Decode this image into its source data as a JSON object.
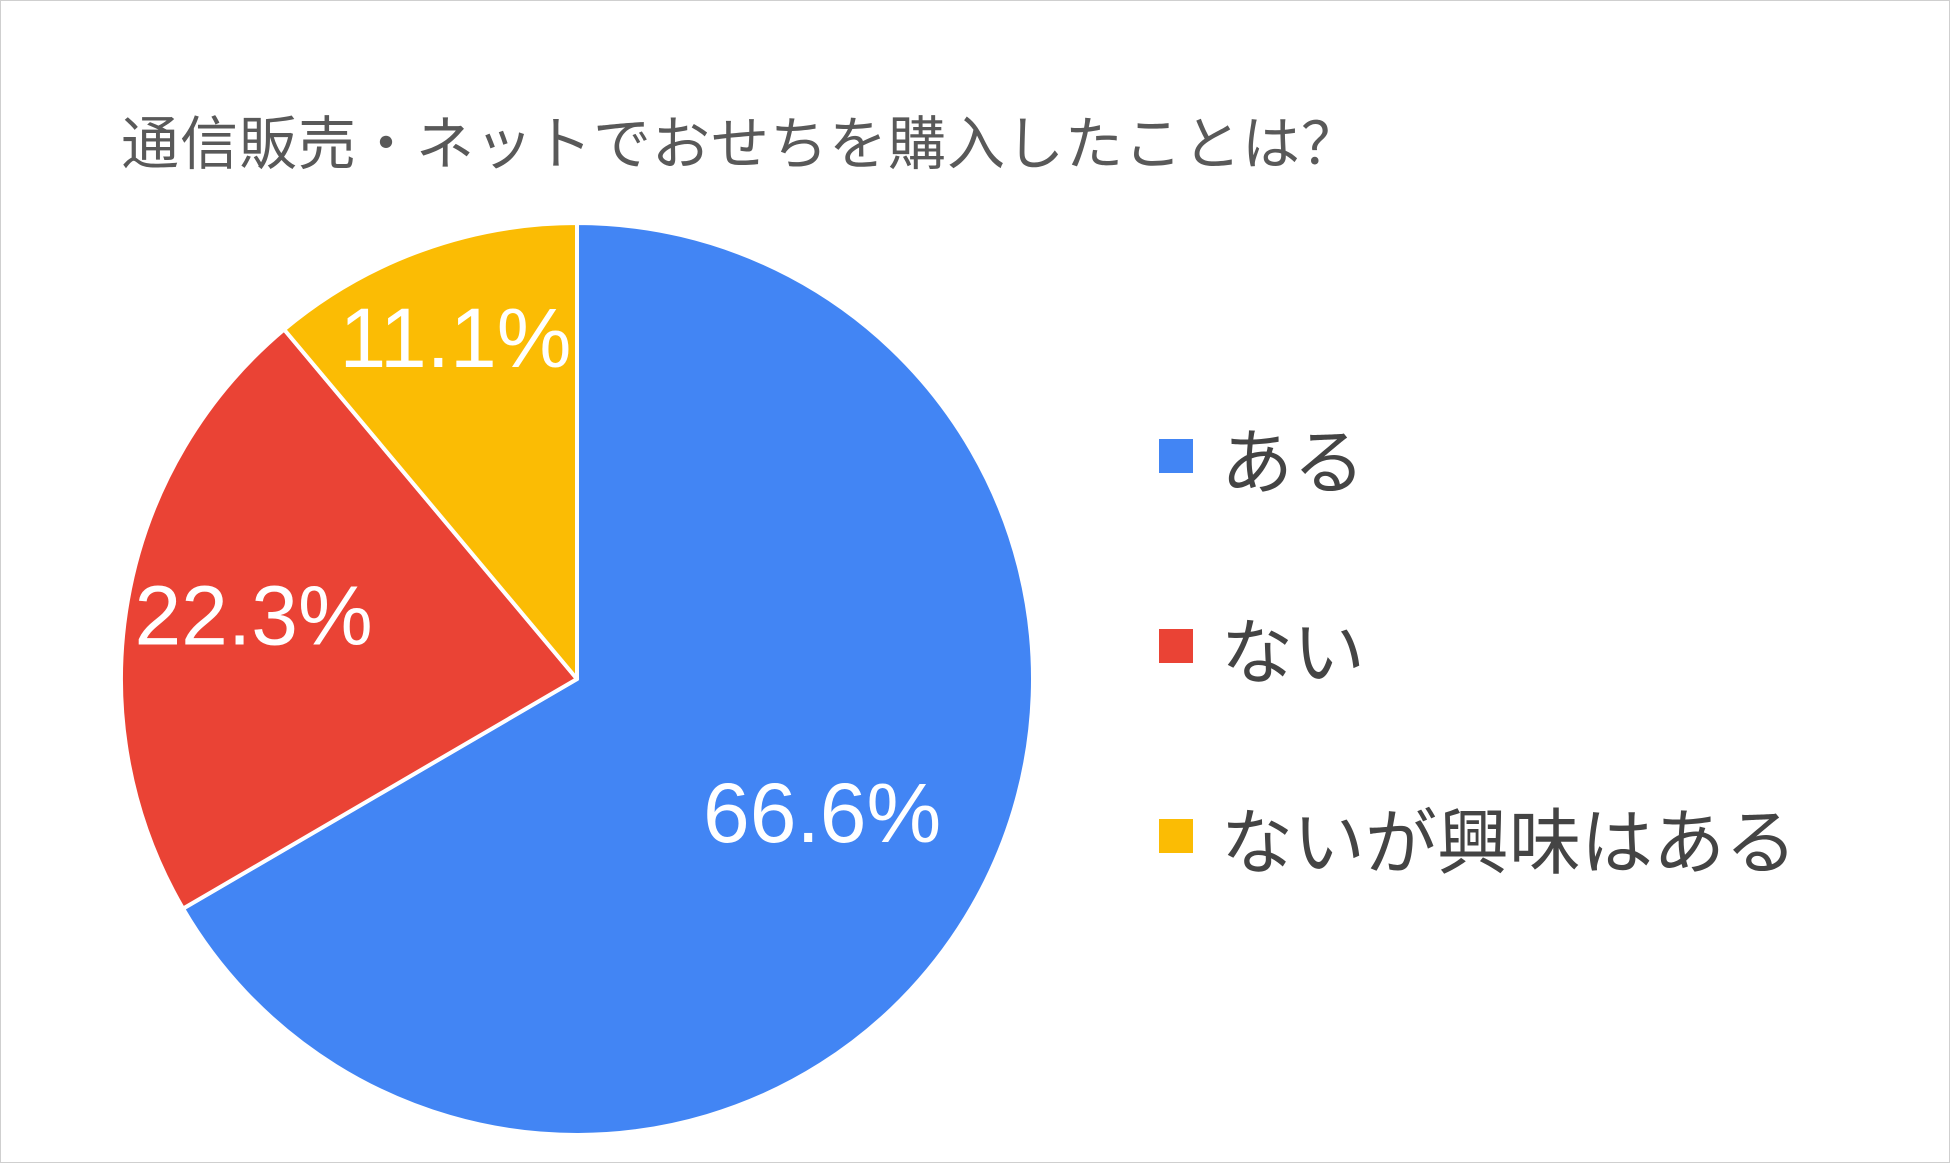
{
  "chart_data": {
    "type": "pie",
    "title": "通信販売・ネットでおせちを購入したことは？",
    "categories": [
      "ある",
      "ない",
      "ないが興味はある"
    ],
    "values": [
      66.6,
      22.3,
      11.1
    ],
    "value_labels": [
      "66.6%",
      "22.3%",
      "11.1%"
    ],
    "colors": [
      "#4285f4",
      "#ea4335",
      "#fbbc04"
    ],
    "legend_position": "right",
    "start_angle": "12 o'clock",
    "direction": "clockwise"
  }
}
